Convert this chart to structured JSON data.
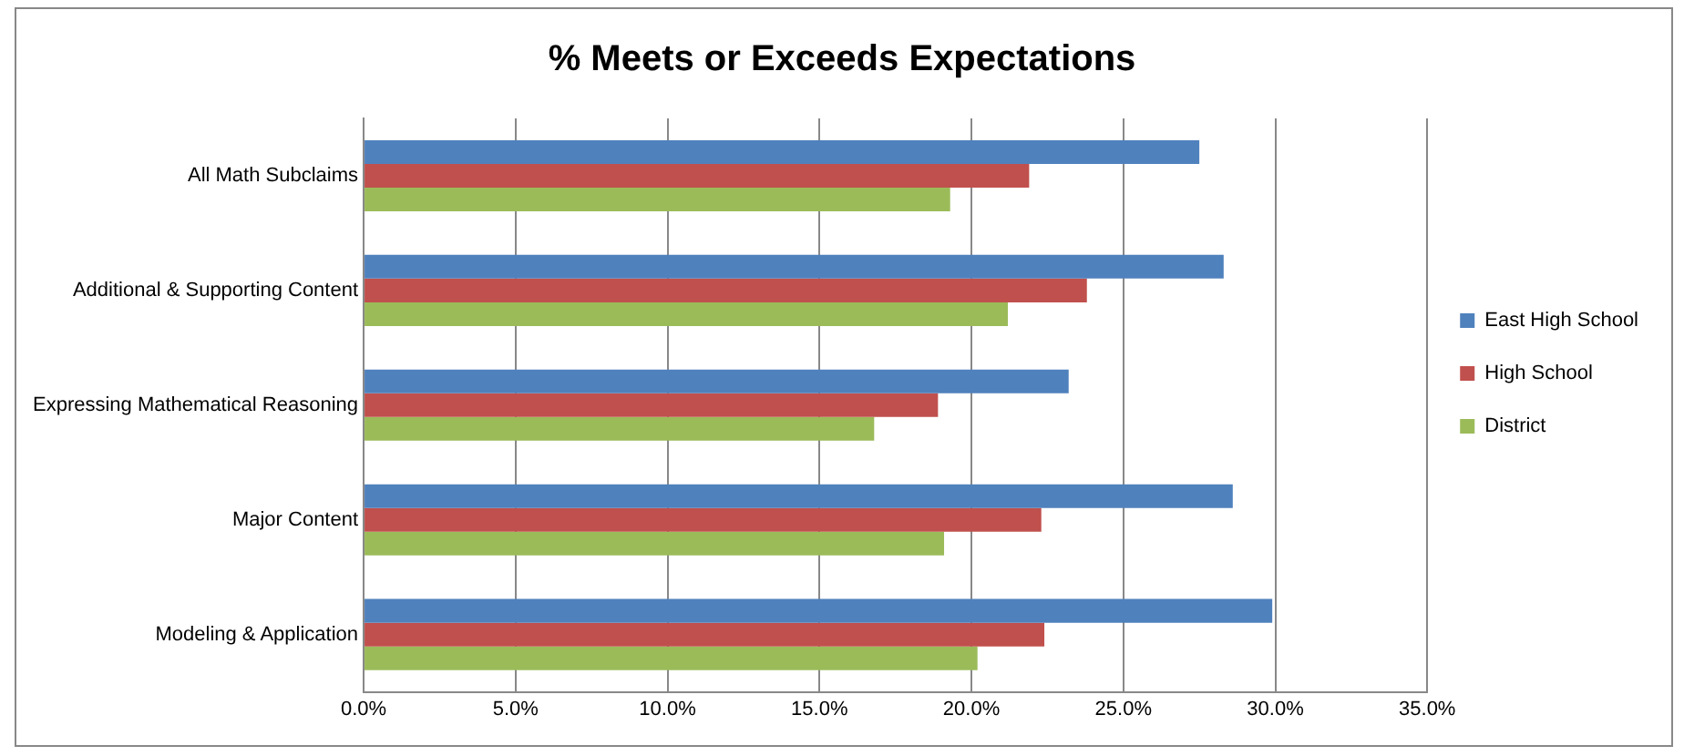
{
  "chart_data": {
    "type": "bar",
    "orientation": "horizontal",
    "title": "% Meets or Exceeds Expectations",
    "categories": [
      "All Math Subclaims",
      "Additional & Supporting Content",
      "Expressing Mathematical Reasoning",
      "Major Content",
      "Modeling & Application"
    ],
    "series": [
      {
        "name": "East High School",
        "color": "#4f81bd",
        "values": [
          27.5,
          28.3,
          23.2,
          28.6,
          29.9
        ]
      },
      {
        "name": "High School",
        "color": "#c0504d",
        "values": [
          21.9,
          23.8,
          18.9,
          22.3,
          22.4
        ]
      },
      {
        "name": "District",
        "color": "#9bbb59",
        "values": [
          19.3,
          21.2,
          16.8,
          19.1,
          20.2
        ]
      }
    ],
    "xlim": [
      0,
      35
    ],
    "xticks": [
      {
        "value": 0,
        "label": "0.0%"
      },
      {
        "value": 5,
        "label": "5.0%"
      },
      {
        "value": 10,
        "label": "10.0%"
      },
      {
        "value": 15,
        "label": "15.0%"
      },
      {
        "value": 20,
        "label": "20.0%"
      },
      {
        "value": 25,
        "label": "25.0%"
      },
      {
        "value": 30,
        "label": "30.0%"
      },
      {
        "value": 35,
        "label": "35.0%"
      }
    ],
    "grid": "x",
    "legend": "right"
  }
}
